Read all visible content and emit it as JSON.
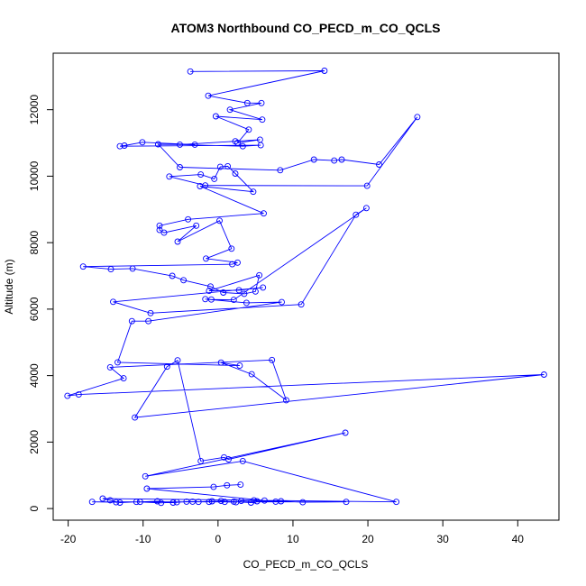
{
  "chart_data": {
    "type": "scatter",
    "title": "ATOM3 Northbound CO_PECD_m_CO_QCLS",
    "xlabel": "CO_PECD_m_CO_QCLS",
    "ylabel": "Altitude (m)",
    "xlim": [
      -22,
      45.5
    ],
    "ylim": [
      -350,
      13700
    ],
    "xticks": [
      -20,
      -10,
      0,
      10,
      20,
      30,
      40
    ],
    "yticks": [
      0,
      2000,
      4000,
      6000,
      8000,
      10000,
      12000
    ],
    "grid": false,
    "line_color": "#0000ff",
    "marker": "open-circle",
    "series": [
      {
        "x": [
          -3.7,
          14.2,
          -1.3,
          3.9,
          5.8,
          1.6,
          5.9,
          -0.3,
          4.1,
          2.6,
          5.6,
          2.3,
          -5.1,
          3.3,
          5.7,
          -13.1,
          -12.5,
          -10.1,
          -3.1,
          -8.0,
          -5.1,
          8.3,
          12.8,
          15.5,
          16.5,
          21.5,
          26.6,
          19.9,
          -1.7,
          -6.5,
          -2.3,
          -0.5,
          0.3,
          1.3,
          2.3,
          4.7,
          -2.4,
          6.1,
          -4.0,
          -7.8,
          -7.8,
          -7.2,
          -2.9,
          -5.4,
          0.2,
          1.8,
          -1.6,
          2.6,
          1.9,
          -18.0,
          -14.3,
          -11.4,
          -6.1,
          -4.6,
          -1.0,
          0.7,
          3.5,
          5.0,
          5.5,
          -1.2,
          2.8,
          6.0,
          -14.0,
          -9.0,
          11.1,
          18.4,
          19.8,
          2.1,
          -0.9,
          -1.7,
          3.8,
          8.5,
          -9.3,
          -11.5,
          -13.4,
          2.9,
          0.4,
          4.5,
          9.1,
          7.2,
          -14.4,
          -12.6,
          -20.1,
          -18.6,
          43.5,
          -11.1,
          -6.8,
          -5.4,
          -2.3,
          0.8,
          1.4,
          17.0,
          -9.7,
          3.3,
          23.8,
          -15.4,
          -14.4,
          -13.1,
          -10.9,
          -7.6,
          -5.5,
          -3.4,
          -1.2,
          0.4,
          2.1,
          4.4,
          6.2,
          8.4,
          11.3,
          17.1,
          -16.8,
          -13.6,
          -10.4,
          -8.1,
          -6.0,
          -4.2,
          -2.6,
          -0.8,
          0.9,
          2.4,
          3.1,
          4.8,
          5.2,
          7.7,
          -9.5,
          -0.6,
          1.2,
          3.0
        ],
        "y": [
          13150,
          13170,
          12420,
          12200,
          12200,
          12000,
          11700,
          11800,
          11400,
          11000,
          11100,
          11050,
          10950,
          10900,
          10930,
          10900,
          10920,
          11020,
          10950,
          10960,
          10270,
          10180,
          10500,
          10470,
          10500,
          10350,
          11780,
          9710,
          9720,
          9990,
          10050,
          9920,
          10280,
          10300,
          10080,
          9530,
          9700,
          8880,
          8700,
          8510,
          8380,
          8300,
          8510,
          8030,
          8660,
          7820,
          7520,
          7400,
          7350,
          7280,
          7200,
          7220,
          7000,
          6870,
          6680,
          6500,
          6460,
          6530,
          7020,
          6550,
          6570,
          6650,
          6220,
          5880,
          6140,
          8840,
          9040,
          6280,
          6290,
          6300,
          6190,
          6210,
          5640,
          5640,
          4400,
          4300,
          4390,
          4040,
          3260,
          4470,
          4250,
          3920,
          3390,
          3430,
          4030,
          2740,
          4270,
          4460,
          1430,
          1540,
          1480,
          2280,
          970,
          1430,
          200,
          300,
          250,
          180,
          200,
          170,
          190,
          210,
          200,
          230,
          210,
          180,
          240,
          220,
          190,
          200,
          200,
          190,
          200,
          220,
          180,
          210,
          200,
          220,
          200,
          190,
          230,
          250,
          220,
          210,
          600,
          650,
          700,
          720
        ]
      }
    ]
  }
}
